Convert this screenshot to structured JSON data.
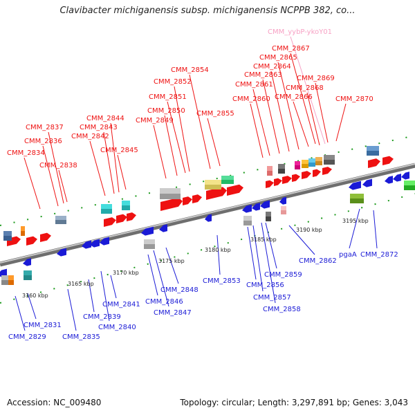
{
  "title": "Clavibacter michiganensis subsp. michiganensis NCPPB 382, co...",
  "footer": {
    "accession": "Accession: NC_009480",
    "summary": "Topology: circular; Length: 3,297,891 bp; Genes: 3,043"
  },
  "colors": {
    "forward": "#ee1111",
    "reverse": "#1a1ad6",
    "backbone": "#808080",
    "tick": "#1c9a1c",
    "pseudo": "#f7a1c4"
  },
  "tick_labels": [
    {
      "label": "3160 kbp",
      "gene": "pos3160"
    },
    {
      "label": "3165 kbp",
      "gene": "pos3165"
    },
    {
      "label": "3170 kbp",
      "gene": "pos3170"
    },
    {
      "label": "3175 kbp",
      "gene": "pos3175"
    },
    {
      "label": "3180 kbp",
      "gene": "pos3180"
    },
    {
      "label": "3185 kbp",
      "gene": "pos3185"
    },
    {
      "label": "3190 kbp",
      "gene": "pos3190"
    },
    {
      "label": "3195 kbp",
      "gene": "pos3195"
    }
  ],
  "forward_labels": [
    "CMM_2834",
    "CMM_2836",
    "CMM_2837",
    "CMM_2838",
    "CMM_2842",
    "CMM_2843",
    "CMM_2844",
    "CMM_2845",
    "CMM_2849",
    "CMM_2850",
    "CMM_2851",
    "CMM_2852",
    "CMM_2854",
    "CMM_2855",
    "CMM_2860",
    "CMM_2861",
    "CMM_2863",
    "CMM_2864",
    "CMM_2865",
    "CMM_2866",
    "CMM_2867",
    "CMM_2868",
    "CMM_2869",
    "CMM_2870"
  ],
  "pseudo_label": "CMM_yybP-ykoY01",
  "reverse_labels": [
    "CMM_2829",
    "CMM_2831",
    "CMM_2835",
    "CMM_2839",
    "CMM_2840",
    "CMM_2841",
    "CMM_2846",
    "CMM_2847",
    "CMM_2848",
    "CMM_2853",
    "CMM_2856",
    "CMM_2857",
    "CMM_2858",
    "CMM_2859",
    "CMM_2862",
    "pgaA",
    "CMM_2872"
  ]
}
